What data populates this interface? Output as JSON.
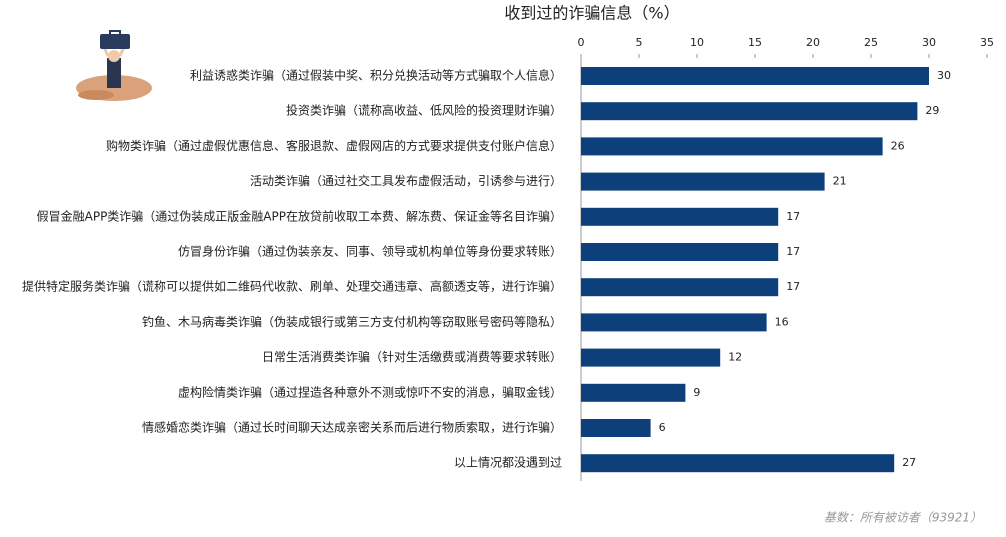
{
  "chart_data": {
    "type": "bar",
    "orientation": "horizontal",
    "title": "收到过的诈骗信息（%）",
    "categories": [
      "利益诱惑类诈骗（通过假装中奖、积分兑换活动等方式骗取个人信息）",
      "投资类诈骗（谎称高收益、低风险的投资理财诈骗）",
      "购物类诈骗（通过虚假优惠信息、客服退款、虚假网店的方式要求提供支付账户信息）",
      "活动类诈骗（通过社交工具发布虚假活动，引诱参与进行）",
      "假冒金融APP类诈骗（通过伪装成正版金融APP在放贷前收取工本费、解冻费、保证金等名目诈骗）",
      "仿冒身份诈骗（通过伪装亲友、同事、领导或机构单位等身份要求转账）",
      "提供特定服务类诈骗（谎称可以提供如二维码代收款、刷单、处理交通违章、高额透支等，进行诈骗）",
      "钓鱼、木马病毒类诈骗（伪装成银行或第三方支付机构等窃取账号密码等隐私）",
      "日常生活消费类诈骗（针对生活缴费或消费等要求转账）",
      "虚构险情类诈骗（通过捏造各种意外不测或惊吓不安的消息，骗取金钱）",
      "情感婚恋类诈骗（通过长时间聊天达成亲密关系而后进行物质索取，进行诈骗）",
      "以上情况都没遇到过"
    ],
    "values": [
      30,
      29,
      26,
      21,
      17,
      17,
      17,
      16,
      12,
      9,
      6,
      27
    ],
    "color": "#0d3f7b",
    "xlim": [
      0,
      35
    ],
    "xticks": [
      0,
      5,
      10,
      15,
      20,
      25,
      30,
      35
    ],
    "note": "基数：所有被访者（93921）"
  }
}
